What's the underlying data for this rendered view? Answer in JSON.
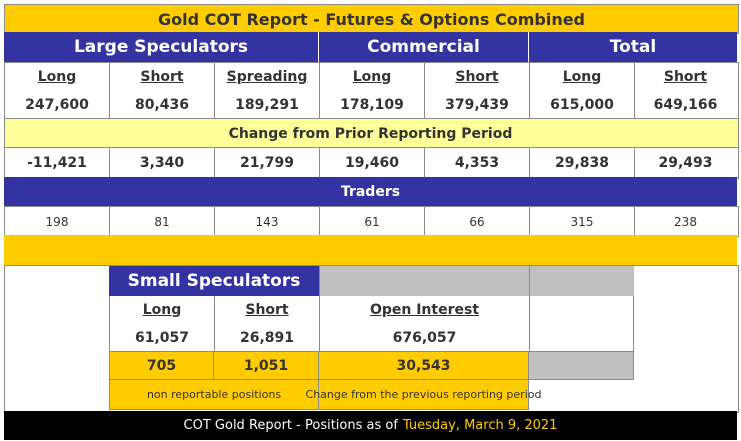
{
  "title": "Gold COT Report - Futures & Options Combined",
  "sections": {
    "large_speculators": "Large Speculators",
    "commercial": "Commercial",
    "total": "Total"
  },
  "columns": [
    "Long",
    "Short",
    "Spreading",
    "Long",
    "Short",
    "Long",
    "Short"
  ],
  "positions": [
    "247,600",
    "80,436",
    "189,291",
    "178,109",
    "379,439",
    "615,000",
    "649,166"
  ],
  "change_label": "Change from Prior Reporting Period",
  "changes": [
    "-11,421",
    "3,340",
    "21,799",
    "19,460",
    "4,353",
    "29,838",
    "29,493"
  ],
  "traders_label": "Traders",
  "traders": [
    "198",
    "81",
    "143",
    "61",
    "66",
    "315",
    "238"
  ],
  "small_speculators": {
    "title": "Small Speculators",
    "long_label": "Long",
    "short_label": "Short",
    "long": "61,057",
    "short": "26,891",
    "long_change": "705",
    "short_change": "1,051",
    "note": "non reportable positions"
  },
  "open_interest": {
    "label": "Open Interest",
    "value": "676,057",
    "change": "30,543",
    "note": "Change from the previous reporting period"
  },
  "footer": {
    "prefix": "COT Gold Report - Positions as of",
    "date": "Tuesday, March 9, 2021"
  },
  "colors": {
    "gold": "#ffcc00",
    "purple": "#3333a1",
    "cream": "#ffff99",
    "grey": "#c0c0c0",
    "black": "#000000"
  }
}
